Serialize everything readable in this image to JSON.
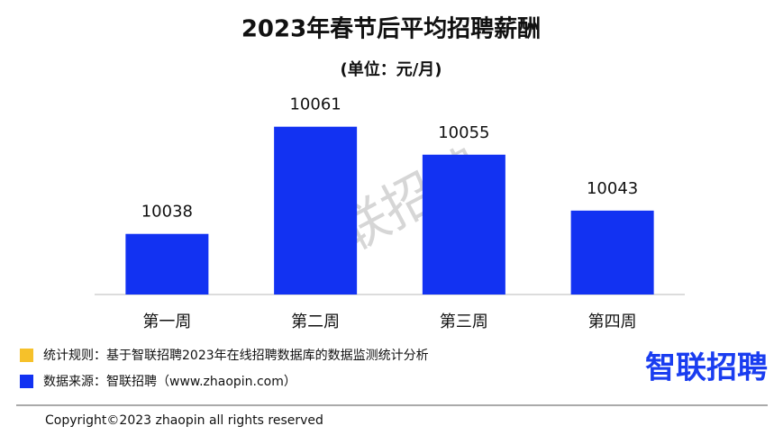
{
  "chart_data": {
    "type": "bar",
    "title": "2023年春节后平均招聘薪酬",
    "subtitle": "(单位：元/月)",
    "categories": [
      "第一周",
      "第二周",
      "第三周",
      "第四周"
    ],
    "values": [
      10038,
      10061,
      10055,
      10043
    ],
    "color": "#1232f2",
    "ylim": [
      10025,
      10065
    ],
    "notes": [
      {
        "text": "统计规则：基于智联招聘2023年在线招聘数据库的数据监测统计分析",
        "color": "#f6c12a"
      },
      {
        "text": "数据来源：智联招聘（www.zhaopin.com）",
        "color": "#1232f2"
      }
    ],
    "watermark": "智联招聘",
    "logo": "智联招聘",
    "footer": "Copyright©2023 zhaopin all rights reserved"
  }
}
